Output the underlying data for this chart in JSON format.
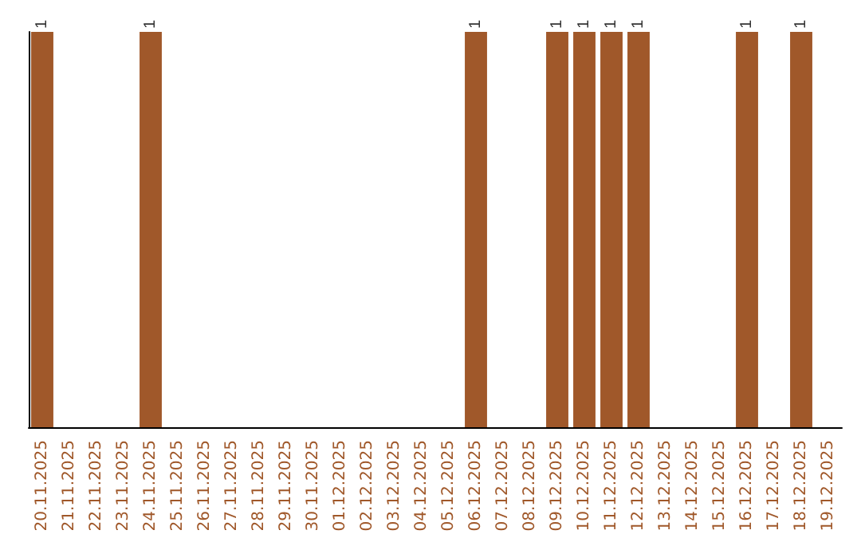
{
  "chart_data": {
    "type": "bar",
    "categories": [
      "20.11.2025",
      "21.11.2025",
      "22.11.2025",
      "23.11.2025",
      "24.11.2025",
      "25.11.2025",
      "26.11.2025",
      "27.11.2025",
      "28.11.2025",
      "29.11.2025",
      "30.11.2025",
      "01.12.2025",
      "02.12.2025",
      "03.12.2025",
      "04.12.2025",
      "05.12.2025",
      "06.12.2025",
      "07.12.2025",
      "08.12.2025",
      "09.12.2025",
      "10.12.2025",
      "11.12.2025",
      "12.12.2025",
      "13.12.2025",
      "14.12.2025",
      "15.12.2025",
      "16.12.2025",
      "17.12.2025",
      "18.12.2025",
      "19.12.2025"
    ],
    "values": [
      1,
      0,
      0,
      0,
      1,
      0,
      0,
      0,
      0,
      0,
      0,
      0,
      0,
      0,
      0,
      0,
      1,
      0,
      0,
      1,
      1,
      1,
      1,
      0,
      0,
      0,
      1,
      0,
      1,
      0
    ],
    "value_labels": [
      "1",
      null,
      null,
      null,
      "1",
      null,
      null,
      null,
      null,
      null,
      null,
      null,
      null,
      null,
      null,
      null,
      "1",
      null,
      null,
      "1",
      "1",
      "1",
      "1",
      null,
      null,
      null,
      "1",
      null,
      "1",
      null
    ],
    "color": "#a0582a",
    "grid": false
  }
}
